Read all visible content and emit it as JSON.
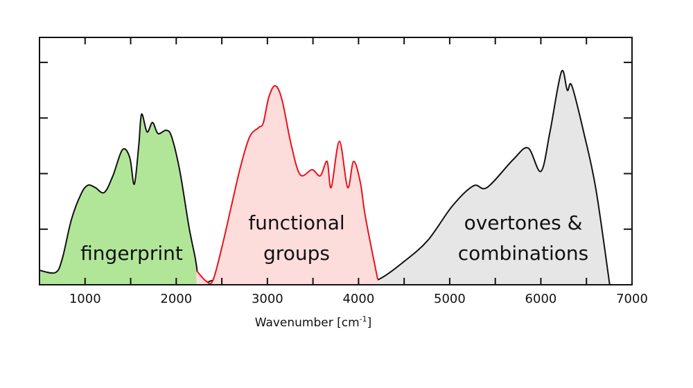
{
  "chart_data": {
    "type": "area",
    "title": "",
    "xlabel": "Wavenumber [cm",
    "xlabel_superscript": "-1",
    "xlabel_suffix": "]",
    "ylabel": "",
    "xlim": [
      500,
      7000
    ],
    "ylim": [
      0,
      4.45
    ],
    "y_tick_labels_shown": false,
    "x_ticks": [
      1000,
      2000,
      3000,
      4000,
      5000,
      6000,
      7000
    ],
    "x_tick_labels": [
      "1000",
      "2000",
      "3000",
      "4000",
      "5000",
      "6000",
      "7000"
    ],
    "grid": false,
    "series": [
      {
        "label_lines": [
          "fingerprint"
        ],
        "line_color": "#111111",
        "fill_color": "#b1e699",
        "x": [
          500,
          675,
          750,
          850,
          955,
          1030,
          1110,
          1210,
          1305,
          1410,
          1490,
          1540,
          1590,
          1620,
          1680,
          1740,
          1800,
          1890,
          1950,
          2040,
          2140,
          2210,
          2250,
          2290
        ],
        "y": [
          0.26,
          0.22,
          0.47,
          1.17,
          1.63,
          1.79,
          1.75,
          1.66,
          1.96,
          2.43,
          2.29,
          1.81,
          2.53,
          3.07,
          2.75,
          2.92,
          2.72,
          2.78,
          2.66,
          2.04,
          1.04,
          0.47,
          0.05,
          0.0
        ]
      },
      {
        "label_lines": [
          "functional",
          "groups"
        ],
        "line_color": "#e8121a",
        "fill_color": "#fddcdc",
        "x": [
          2220,
          2325,
          2400,
          2500,
          2600,
          2705,
          2805,
          2905,
          2955,
          3015,
          3085,
          3160,
          3260,
          3360,
          3490,
          3580,
          3655,
          3700,
          3790,
          3880,
          3945,
          4020,
          4075,
          4210
        ],
        "y": [
          0.26,
          0.07,
          0.07,
          0.67,
          1.38,
          2.12,
          2.66,
          2.83,
          2.91,
          3.37,
          3.58,
          3.33,
          2.53,
          1.98,
          2.07,
          1.96,
          2.22,
          1.75,
          2.58,
          1.75,
          2.22,
          1.84,
          1.22,
          0.1
        ]
      },
      {
        "label_lines": [
          "overtones &",
          "combinations"
        ],
        "line_color": "#111111",
        "fill_color": "#e6e6e6",
        "x": [
          2290,
          2400,
          2600,
          3000,
          3300,
          3600,
          3800,
          4020,
          4225,
          4500,
          4760,
          5030,
          5260,
          5410,
          5695,
          5860,
          6000,
          6100,
          6225,
          6290,
          6340,
          6475,
          6605,
          6755
        ],
        "y": [
          0.0,
          0.08,
          0.12,
          0.12,
          0.15,
          0.18,
          0.12,
          0.05,
          0.1,
          0.42,
          0.8,
          1.42,
          1.78,
          1.75,
          2.25,
          2.46,
          2.04,
          2.75,
          3.83,
          3.5,
          3.58,
          2.71,
          1.71,
          0.0
        ]
      }
    ]
  }
}
